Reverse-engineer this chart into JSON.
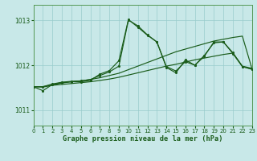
{
  "title": "Graphe pression niveau de la mer (hPa)",
  "bg_color": "#c8e8e8",
  "grid_color": "#99cccc",
  "line_color": "#1a5c1a",
  "xlim": [
    0,
    23
  ],
  "ylim": [
    1010.65,
    1013.35
  ],
  "yticks": [
    1011,
    1012,
    1013
  ],
  "xticks": [
    0,
    1,
    2,
    3,
    4,
    5,
    6,
    7,
    8,
    9,
    10,
    11,
    12,
    13,
    14,
    15,
    16,
    17,
    18,
    19,
    20,
    21,
    22,
    23
  ],
  "s_linear_x": [
    0,
    1,
    2,
    3,
    4,
    5,
    6,
    7,
    8,
    9,
    10,
    11,
    12,
    13,
    14,
    15,
    16,
    17,
    18,
    19,
    20,
    21,
    22,
    23
  ],
  "s_linear_y": [
    1011.52,
    1011.51,
    1011.55,
    1011.57,
    1011.59,
    1011.61,
    1011.63,
    1011.66,
    1011.69,
    1011.73,
    1011.78,
    1011.83,
    1011.88,
    1011.93,
    1011.98,
    1012.02,
    1012.07,
    1012.12,
    1012.16,
    1012.2,
    1012.24,
    1012.27,
    1011.98,
    1011.93
  ],
  "s_peak1_x": [
    0,
    1,
    2,
    3,
    4,
    5,
    6,
    7,
    8,
    9,
    10,
    11,
    12,
    13,
    14,
    15,
    16,
    17,
    18,
    19,
    20,
    21,
    22,
    23
  ],
  "s_peak1_y": [
    1011.52,
    1011.43,
    1011.57,
    1011.61,
    1011.63,
    1011.63,
    1011.66,
    1011.8,
    1011.88,
    1012.1,
    1013.02,
    1012.85,
    1012.67,
    1012.52,
    1011.95,
    1011.83,
    1012.12,
    1012.0,
    1012.2,
    1012.52,
    1012.52,
    1012.28,
    1011.97,
    1011.91
  ],
  "s_peak2_x": [
    0,
    1,
    2,
    3,
    4,
    5,
    6,
    7,
    8,
    9,
    10,
    11,
    12,
    13,
    14,
    15,
    16,
    17,
    18,
    19,
    20,
    21,
    22,
    23
  ],
  "s_peak2_y": [
    1011.52,
    1011.52,
    1011.58,
    1011.62,
    1011.64,
    1011.65,
    1011.68,
    1011.77,
    1011.85,
    1011.98,
    1013.01,
    1012.88,
    1012.68,
    1012.52,
    1011.97,
    1011.87,
    1012.08,
    1012.0,
    1012.22,
    1012.5,
    1012.52,
    1012.26,
    1011.97,
    1011.91
  ],
  "s_slow_x": [
    0,
    1,
    2,
    3,
    4,
    5,
    6,
    7,
    8,
    9,
    10,
    11,
    12,
    13,
    14,
    15,
    16,
    17,
    18,
    19,
    20,
    21,
    22,
    23
  ],
  "s_slow_y": [
    1011.52,
    1011.52,
    1011.56,
    1011.6,
    1011.63,
    1011.65,
    1011.68,
    1011.72,
    1011.77,
    1011.82,
    1011.9,
    1011.98,
    1012.06,
    1012.14,
    1012.22,
    1012.3,
    1012.36,
    1012.42,
    1012.48,
    1012.54,
    1012.58,
    1012.62,
    1012.65,
    1011.93
  ]
}
